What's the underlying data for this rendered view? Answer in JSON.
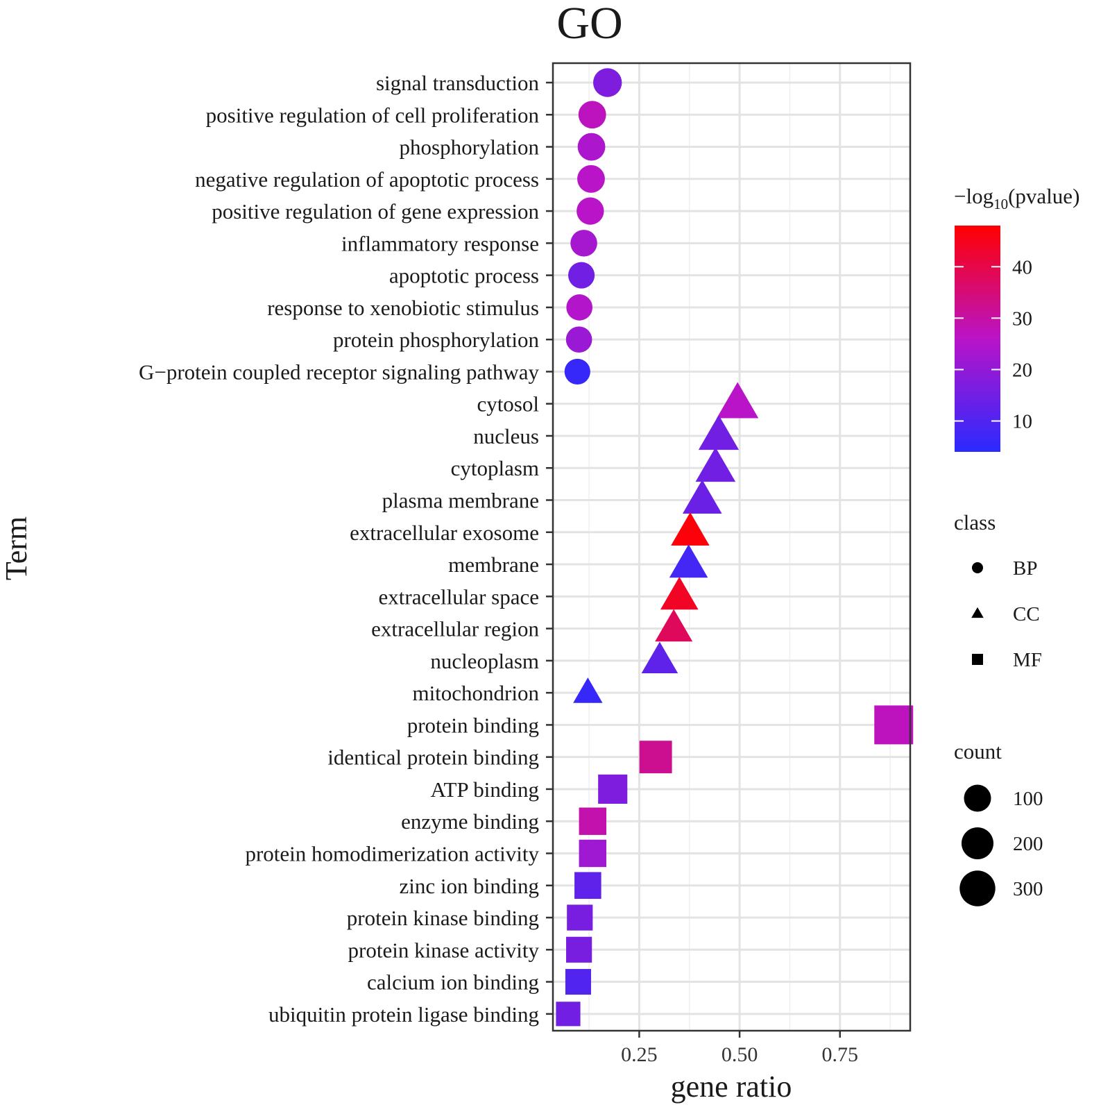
{
  "chart_data": {
    "type": "scatter",
    "title": "GO",
    "xlabel": "gene ratio",
    "ylabel": "Term",
    "xlim": [
      0.035,
      0.925
    ],
    "xticks": [
      0.25,
      0.5,
      0.75
    ],
    "xtick_labels": [
      "0.25",
      "0.50",
      "0.75"
    ],
    "grid": true,
    "points": [
      {
        "term": "signal transduction",
        "class": "BP",
        "gene_ratio": 0.171,
        "pvalue_log10": 17,
        "count": 130
      },
      {
        "term": "positive regulation of cell proliferation",
        "class": "BP",
        "gene_ratio": 0.133,
        "pvalue_log10": 27,
        "count": 110
      },
      {
        "term": "phosphorylation",
        "class": "BP",
        "gene_ratio": 0.131,
        "pvalue_log10": 24,
        "count": 110
      },
      {
        "term": "negative regulation of apoptotic process",
        "class": "BP",
        "gene_ratio": 0.13,
        "pvalue_log10": 26,
        "count": 110
      },
      {
        "term": "positive regulation of gene expression",
        "class": "BP",
        "gene_ratio": 0.128,
        "pvalue_log10": 26,
        "count": 105
      },
      {
        "term": "inflammatory response",
        "class": "BP",
        "gene_ratio": 0.112,
        "pvalue_log10": 23,
        "count": 95
      },
      {
        "term": "apoptotic process",
        "class": "BP",
        "gene_ratio": 0.106,
        "pvalue_log10": 15,
        "count": 90
      },
      {
        "term": "response to xenobiotic stimulus",
        "class": "BP",
        "gene_ratio": 0.101,
        "pvalue_log10": 25,
        "count": 85
      },
      {
        "term": "protein phosphorylation",
        "class": "BP",
        "gene_ratio": 0.1,
        "pvalue_log10": 21,
        "count": 85
      },
      {
        "term": "G−protein coupled receptor signaling pathway",
        "class": "BP",
        "gene_ratio": 0.096,
        "pvalue_log10": 6,
        "count": 80
      },
      {
        "term": "cytosol",
        "class": "CC",
        "gene_ratio": 0.495,
        "pvalue_log10": 26,
        "count": 370
      },
      {
        "term": "nucleus",
        "class": "CC",
        "gene_ratio": 0.448,
        "pvalue_log10": 15,
        "count": 330
      },
      {
        "term": "cytoplasm",
        "class": "CC",
        "gene_ratio": 0.44,
        "pvalue_log10": 15,
        "count": 320
      },
      {
        "term": "plasma membrane",
        "class": "CC",
        "gene_ratio": 0.407,
        "pvalue_log10": 14,
        "count": 300
      },
      {
        "term": "extracellular exosome",
        "class": "CC",
        "gene_ratio": 0.377,
        "pvalue_log10": 47,
        "count": 280
      },
      {
        "term": "membrane",
        "class": "CC",
        "gene_ratio": 0.373,
        "pvalue_log10": 8,
        "count": 280
      },
      {
        "term": "extracellular space",
        "class": "CC",
        "gene_ratio": 0.35,
        "pvalue_log10": 44,
        "count": 265
      },
      {
        "term": "extracellular region",
        "class": "CC",
        "gene_ratio": 0.336,
        "pvalue_log10": 38,
        "count": 255
      },
      {
        "term": "nucleoplasm",
        "class": "CC",
        "gene_ratio": 0.301,
        "pvalue_log10": 12,
        "count": 230
      },
      {
        "term": "mitochondrion",
        "class": "CC",
        "gene_ratio": 0.122,
        "pvalue_log10": 6,
        "count": 95
      },
      {
        "term": "protein binding",
        "class": "MF",
        "gene_ratio": 0.884,
        "pvalue_log10": 27,
        "count": 400
      },
      {
        "term": "identical protein binding",
        "class": "MF",
        "gene_ratio": 0.291,
        "pvalue_log10": 32,
        "count": 215
      },
      {
        "term": "ATP binding",
        "class": "MF",
        "gene_ratio": 0.184,
        "pvalue_log10": 17,
        "count": 140
      },
      {
        "term": "enzyme binding",
        "class": "MF",
        "gene_ratio": 0.134,
        "pvalue_log10": 29,
        "count": 105
      },
      {
        "term": "protein homodimerization activity",
        "class": "MF",
        "gene_ratio": 0.134,
        "pvalue_log10": 22,
        "count": 105
      },
      {
        "term": "zinc ion binding",
        "class": "MF",
        "gene_ratio": 0.122,
        "pvalue_log10": 12,
        "count": 95
      },
      {
        "term": "protein kinase binding",
        "class": "MF",
        "gene_ratio": 0.102,
        "pvalue_log10": 16,
        "count": 80
      },
      {
        "term": "protein kinase activity",
        "class": "MF",
        "gene_ratio": 0.1,
        "pvalue_log10": 16,
        "count": 80
      },
      {
        "term": "calcium ion binding",
        "class": "MF",
        "gene_ratio": 0.098,
        "pvalue_log10": 10,
        "count": 78
      },
      {
        "term": "ubiquitin protein ligase binding",
        "class": "MF",
        "gene_ratio": 0.073,
        "pvalue_log10": 15,
        "count": 60
      }
    ],
    "color_legend": {
      "title_prefix": "−log",
      "title_subscript": "10",
      "title_suffix": "(pvalue)",
      "range": [
        4,
        48
      ],
      "ticks": [
        10,
        20,
        30,
        40
      ],
      "tick_labels": [
        "10",
        "20",
        "30",
        "40"
      ],
      "low_color": "#2a2aff",
      "mid_color": "#b914c8",
      "high_color": "#ff0000"
    },
    "shape_legend": {
      "title": "class",
      "items": [
        {
          "label": "BP",
          "shape": "circle"
        },
        {
          "label": "CC",
          "shape": "triangle"
        },
        {
          "label": "MF",
          "shape": "square"
        }
      ]
    },
    "size_legend": {
      "title": "count",
      "values": [
        100,
        200,
        300
      ],
      "labels": [
        "100",
        "200",
        "300"
      ]
    },
    "legend_position": "right"
  }
}
